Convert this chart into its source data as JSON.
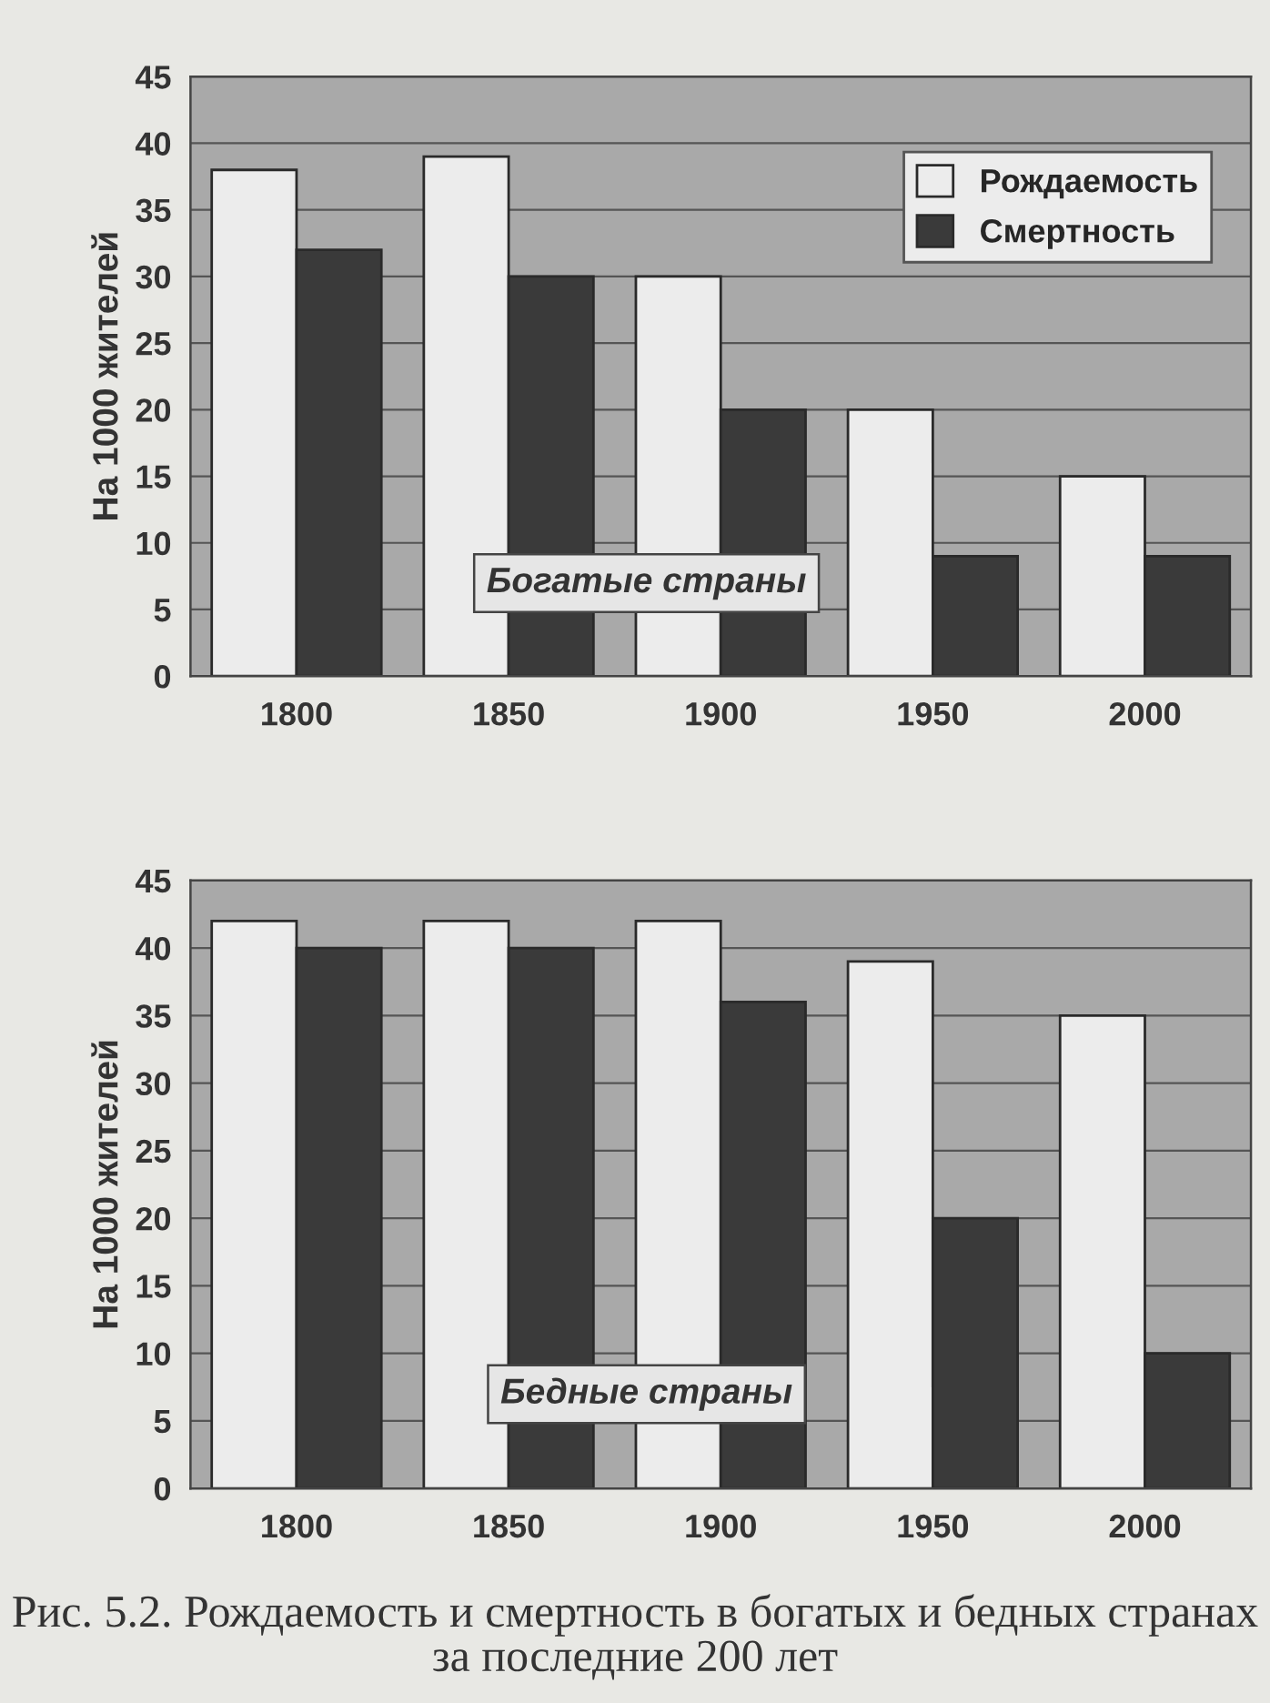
{
  "chart_data": [
    {
      "type": "bar",
      "categories": [
        "1800",
        "1850",
        "1900",
        "1950",
        "2000"
      ],
      "series": [
        {
          "name": "Рождаемость",
          "color": "#ececec",
          "values": [
            38,
            39,
            30,
            20,
            15
          ]
        },
        {
          "name": "Смертность",
          "color": "#3a3a3a",
          "values": [
            32,
            30,
            20,
            9,
            9
          ]
        }
      ],
      "ylabel": "На 1000 жителей",
      "ylim": [
        0,
        45
      ],
      "yticks": [
        0,
        5,
        10,
        15,
        20,
        25,
        30,
        35,
        40,
        45
      ],
      "grid": "y",
      "legend": "top right",
      "annotations": [
        "Богатые страны"
      ]
    },
    {
      "type": "bar",
      "categories": [
        "1800",
        "1850",
        "1900",
        "1950",
        "2000"
      ],
      "series": [
        {
          "color": "#ececec",
          "values": [
            42,
            42,
            42,
            39,
            35
          ]
        },
        {
          "color": "#3a3a3a",
          "values": [
            40,
            40,
            36,
            20,
            10
          ]
        }
      ],
      "ylabel": "На 1000 жителей",
      "ylim": [
        0,
        45
      ],
      "yticks": [
        0,
        5,
        10,
        15,
        20,
        25,
        30,
        35,
        40,
        45
      ],
      "grid": "y",
      "annotations": [
        "Бедные страны",
        "Рис. 5.2. Рождаемость и смертность в богатых и бедных странах за последние 200 лет"
      ]
    }
  ]
}
